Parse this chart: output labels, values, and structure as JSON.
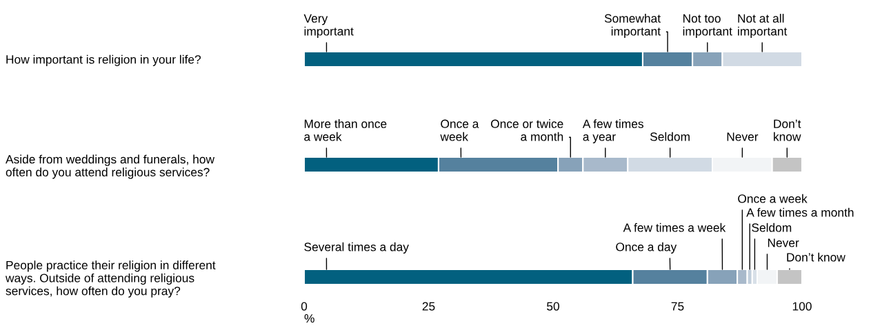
{
  "chart_data": [
    {
      "type": "bar",
      "orientation": "horizontal",
      "stacked": true,
      "categories": [
        "How important is religion in your life?"
      ],
      "xlim": [
        0,
        100
      ],
      "xticks": [
        0,
        25,
        50,
        75,
        100
      ],
      "tick_labels": "y",
      "legend": false,
      "grid": false,
      "series": [
        {
          "name": "Very\nimportant",
          "color": "#02607f",
          "values": [
            68
          ]
        },
        {
          "name": "Somewhat\nimportant",
          "color": "#55819e",
          "values": [
            10
          ]
        },
        {
          "name": "Not too\nimportant",
          "color": "#87a2b9",
          "values": [
            6
          ]
        },
        {
          "name": "Not at all\nimportant",
          "color": "#d1dae4",
          "values": [
            16
          ]
        }
      ]
    },
    {
      "type": "bar",
      "orientation": "horizontal",
      "stacked": true,
      "categories": [
        "Aside from weddings and funerals, how\noften do you attend religious services?"
      ],
      "xlim": [
        0,
        100
      ],
      "xticks": [
        0,
        25,
        50,
        75,
        100
      ],
      "tick_labels": "y",
      "legend": false,
      "grid": false,
      "series": [
        {
          "name": "More than once\na week",
          "color": "#02607f",
          "values": [
            27
          ]
        },
        {
          "name": "Once a\nweek",
          "color": "#55819e",
          "values": [
            24
          ]
        },
        {
          "name": "Once or twice\na month",
          "color": "#87a2b9",
          "values": [
            5
          ]
        },
        {
          "name": "A few times\na year",
          "color": "#a8b9cb",
          "values": [
            9
          ]
        },
        {
          "name": "Seldom",
          "color": "#d1dae4",
          "values": [
            17
          ]
        },
        {
          "name": "Never",
          "color": "#f2f4f6",
          "values": [
            12
          ]
        },
        {
          "name": "Don’t\nknow",
          "color": "#c4c4c4",
          "values": [
            6
          ]
        }
      ]
    },
    {
      "type": "bar",
      "orientation": "horizontal",
      "stacked": true,
      "categories": [
        "People practice their religion in different\nways. Outside of attending religious\nservices, how often do you pray?"
      ],
      "xlim": [
        0,
        100
      ],
      "xticks": [
        0,
        25,
        50,
        75,
        100
      ],
      "xlabel": "%",
      "legend": false,
      "grid": false,
      "series": [
        {
          "name": "Several times a day",
          "color": "#02607f",
          "values": [
            66
          ]
        },
        {
          "name": "Once a day",
          "color": "#55819e",
          "values": [
            15
          ]
        },
        {
          "name": "A few times a week",
          "color": "#87a2b9",
          "values": [
            6
          ]
        },
        {
          "name": "Once a week",
          "color": "#a8b9cb",
          "values": [
            2
          ]
        },
        {
          "name": "A few times a month",
          "color": "#c2cfdc",
          "values": [
            1
          ]
        },
        {
          "name": "Seldom",
          "color": "#d8e0e8",
          "values": [
            1
          ]
        },
        {
          "name": "Never",
          "color": "#f2f4f6",
          "values": [
            4
          ]
        },
        {
          "name": "Don’t know",
          "color": "#c4c4c4",
          "values": [
            5
          ]
        }
      ]
    }
  ]
}
